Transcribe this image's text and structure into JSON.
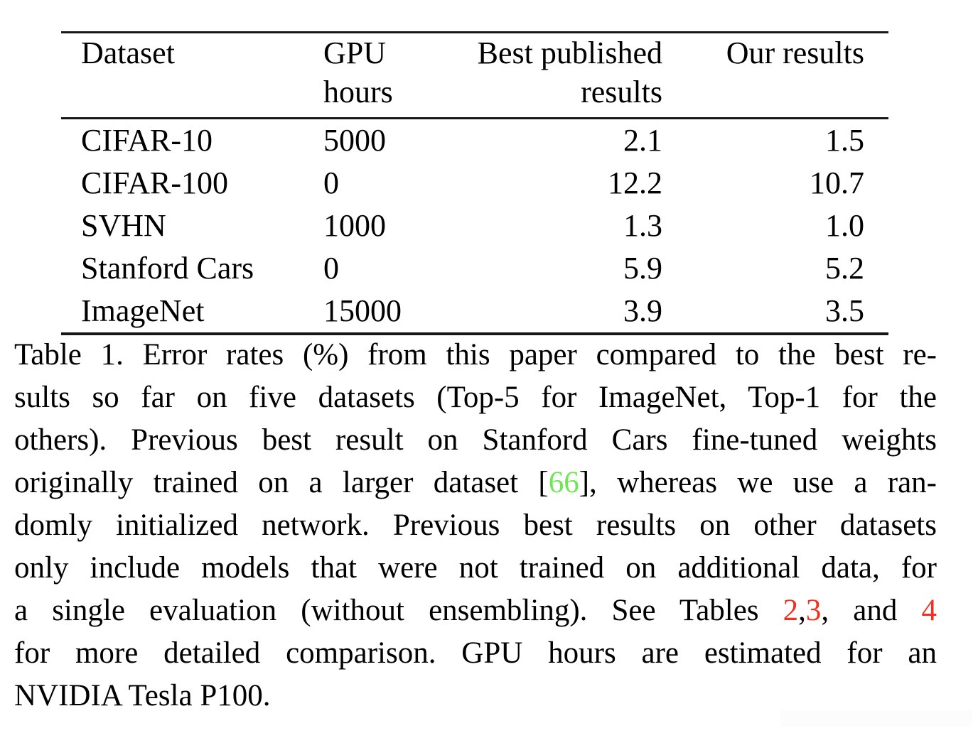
{
  "colors": {
    "text": "#000000",
    "rule": "#161616",
    "citation": "#70e557",
    "reference": "#f1301f",
    "artifact_fill": "#fcfcfc"
  },
  "table": {
    "columns": [
      {
        "label": "Dataset",
        "align": "left"
      },
      {
        "label": "GPU\nhours",
        "align": "left"
      },
      {
        "label": "Best published\nresults",
        "align": "right"
      },
      {
        "label": "Our results",
        "align": "right"
      }
    ],
    "rows": [
      {
        "dataset": "CIFAR-10",
        "gpu_hours": "5000",
        "best_published": "2.1",
        "ours": "1.5"
      },
      {
        "dataset": "CIFAR-100",
        "gpu_hours": "0",
        "best_published": "12.2",
        "ours": "10.7"
      },
      {
        "dataset": "SVHN",
        "gpu_hours": "1000",
        "best_published": "1.3",
        "ours": "1.0"
      },
      {
        "dataset": "Stanford Cars",
        "gpu_hours": "0",
        "best_published": "5.9",
        "ours": "5.2"
      },
      {
        "dataset": "ImageNet",
        "gpu_hours": "15000",
        "best_published": "3.9",
        "ours": "3.5"
      }
    ]
  },
  "caption": {
    "lines": [
      {
        "justify": true,
        "segments": [
          {
            "text": "Table 1. Error rates (%) from this paper compared to the best re-"
          }
        ]
      },
      {
        "justify": true,
        "segments": [
          {
            "text": "sults so far on five datasets (Top-5 for ImageNet, Top-1 for the"
          }
        ]
      },
      {
        "justify": true,
        "segments": [
          {
            "text": "others). Previous best result on Stanford Cars fine-tuned weights"
          }
        ]
      },
      {
        "justify": true,
        "segments": [
          {
            "text": "originally trained on a larger dataset ["
          },
          {
            "text": "66",
            "color": "citation",
            "name": "citation-link-66"
          },
          {
            "text": "], whereas we use a ran-"
          }
        ]
      },
      {
        "justify": true,
        "segments": [
          {
            "text": "domly initialized network. Previous best results on other datasets"
          }
        ]
      },
      {
        "justify": true,
        "segments": [
          {
            "text": "only include models that were not trained on additional data, for"
          }
        ]
      },
      {
        "justify": true,
        "segments": [
          {
            "text": "a single evaluation (without ensembling). See Tables "
          },
          {
            "text": "2",
            "color": "reference",
            "name": "table-ref-link-2"
          },
          {
            "text": ","
          },
          {
            "text": "3",
            "color": "reference",
            "name": "table-ref-link-3"
          },
          {
            "text": ", and "
          },
          {
            "text": "4",
            "color": "reference",
            "name": "table-ref-link-4"
          }
        ]
      },
      {
        "justify": true,
        "segments": [
          {
            "text": "for more detailed comparison. GPU hours are estimated for an"
          }
        ]
      },
      {
        "justify": false,
        "segments": [
          {
            "text": "NVIDIA Tesla P100."
          }
        ]
      }
    ]
  }
}
